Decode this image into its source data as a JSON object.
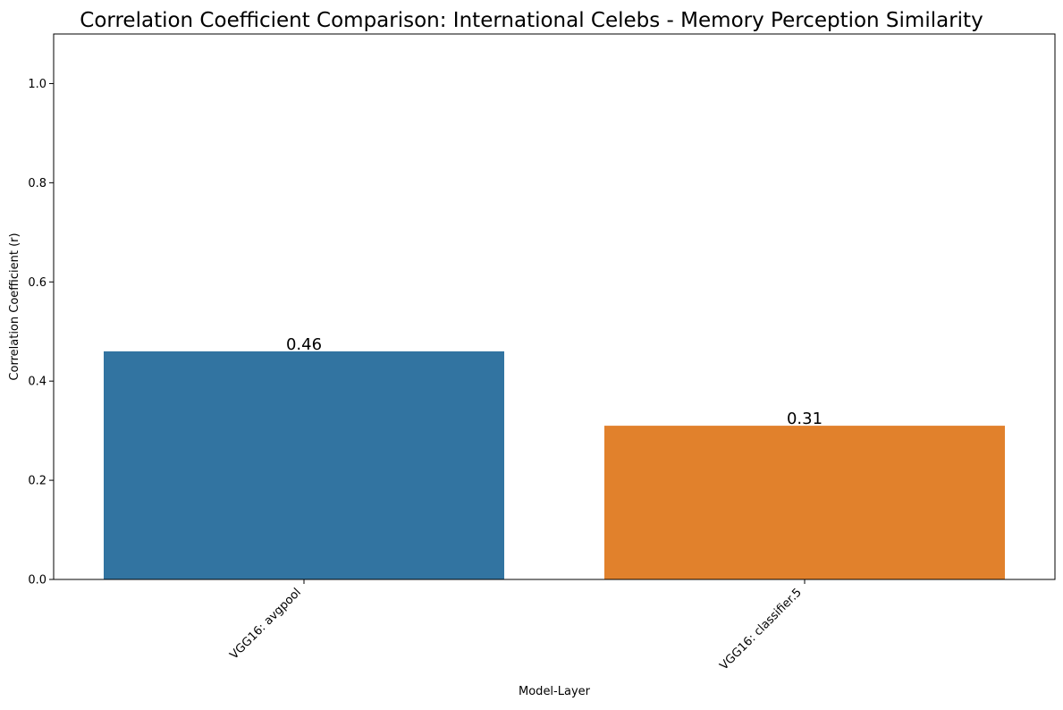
{
  "chart_data": {
    "type": "bar",
    "title": "Correlation Coefficient Comparison: International Celebs - Memory Perception Similarity",
    "xlabel": "Model-Layer",
    "ylabel": "Correlation Coefficient (r)",
    "categories": [
      "VGG16: avgpool",
      "VGG16: classifier.5"
    ],
    "values": [
      0.46,
      0.31
    ],
    "value_labels": [
      "0.46",
      "0.31"
    ],
    "bar_colors": [
      "#3274a1",
      "#e1812c"
    ],
    "ylim": [
      0,
      1.1
    ],
    "yticks": [
      0.0,
      0.2,
      0.4,
      0.6,
      0.8,
      1.0
    ],
    "ytick_labels": [
      "0.0",
      "0.2",
      "0.4",
      "0.6",
      "0.8",
      "1.0"
    ],
    "grid": false,
    "legend": "none"
  }
}
